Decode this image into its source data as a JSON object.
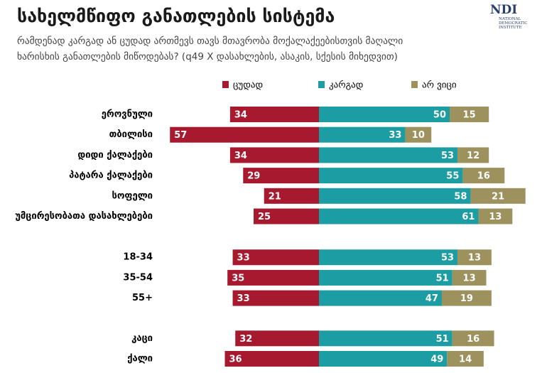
{
  "chart_data": {
    "type": "diverging_bar",
    "title": "სახელმწიფო განათლების სისტემა",
    "subtitle": "რამდენად კარგად ან ცუდად ართმევს თავს მთავრობა მოქალაქეებისთვის მაღალი ხარისხის განათლების მიწოდებას? (q49 X დასახლების, ასაკის, სქესის მიხედვით)",
    "logo": {
      "name": "NDI",
      "caption": "NATIONAL DEMOCRATIC INSTITUTE"
    },
    "categories": [
      "ეროვნული",
      "თბილისი",
      "დიდი ქალაქები",
      "პატარა ქალაქები",
      "სოფელი",
      "უმცირესობათა დასახლებები",
      "18-34",
      "35-54",
      "55+",
      "კაცი",
      "ქალი"
    ],
    "series": [
      {
        "name": "ცუდად",
        "color": "#a6192e",
        "values": [
          34,
          57,
          34,
          29,
          21,
          25,
          33,
          35,
          33,
          32,
          36
        ]
      },
      {
        "name": "კარგად",
        "color": "#1c9ca3",
        "values": [
          50,
          33,
          53,
          55,
          58,
          61,
          53,
          51,
          47,
          51,
          49
        ]
      },
      {
        "name": "არ ვიცი",
        "color": "#9d915e",
        "values": [
          15,
          10,
          12,
          16,
          21,
          13,
          13,
          13,
          19,
          16,
          14
        ]
      }
    ],
    "legend": "top"
  }
}
